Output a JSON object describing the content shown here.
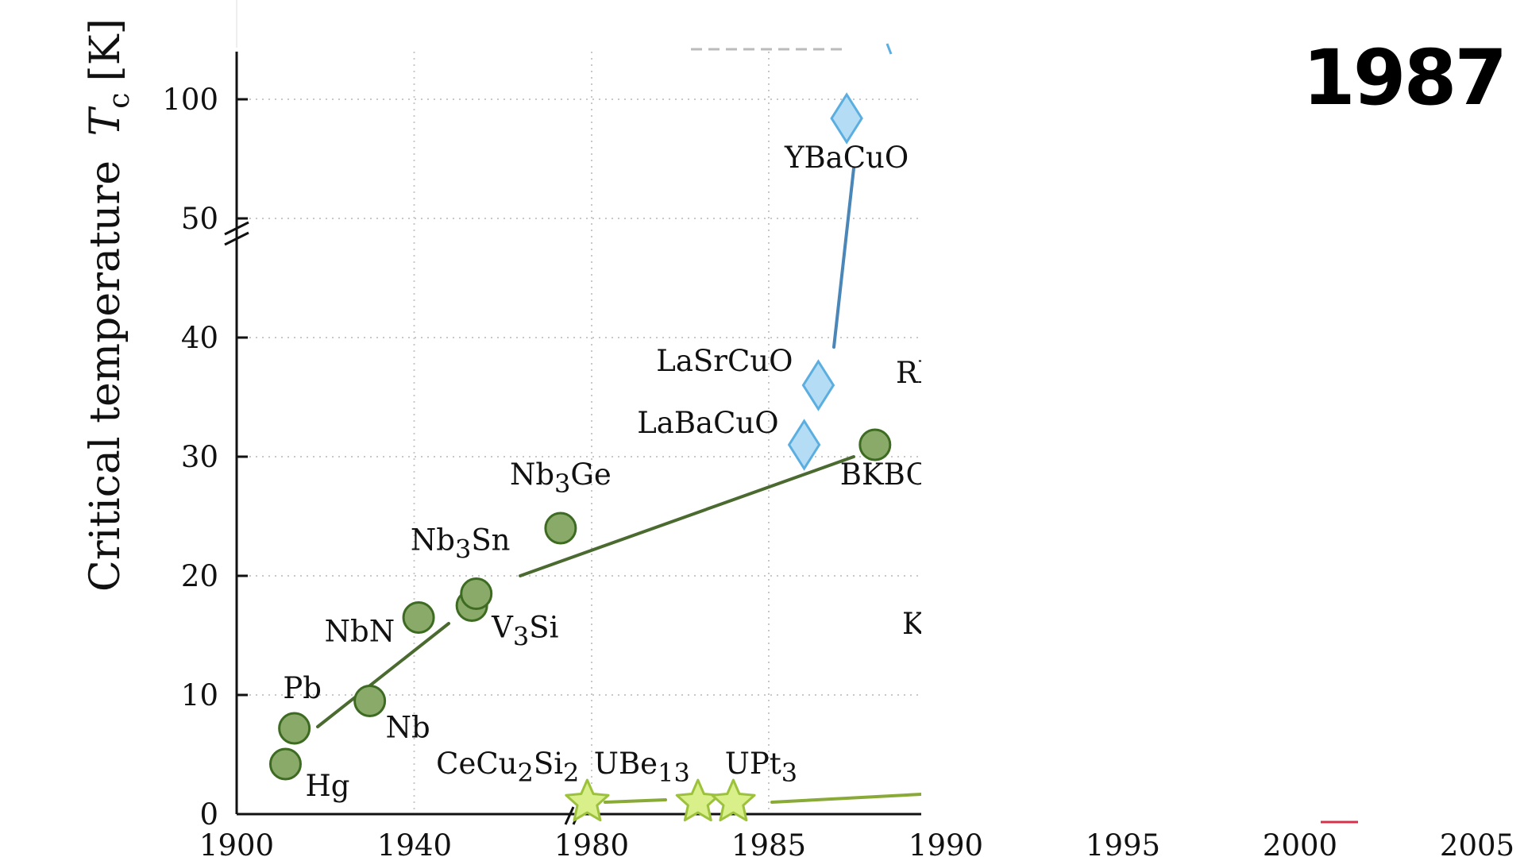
{
  "year_label": "1987",
  "chart_data": {
    "type": "scatter",
    "title": "",
    "ylabel": "Critical temperature",
    "ylabel_symbol": "T",
    "ylabel_subscript": "c",
    "ylabel_unit": "[K]",
    "x_ticks_left": [
      "1900",
      "1940",
      "1980"
    ],
    "x_ticks_right": [
      "1985",
      "1990",
      "1995",
      "2000",
      "2005"
    ],
    "y_ticks": [
      "0",
      "10",
      "20",
      "30",
      "40",
      "50",
      "100"
    ],
    "x_break": true,
    "y_break": true,
    "grid": true,
    "colors": {
      "conventional": "#8aaa6a",
      "conventional_stroke": "#3e6b22",
      "cuprate": "#b5dcf5",
      "cuprate_stroke": "#5aaee0",
      "heavy_fermion": "#d8ef8a",
      "heavy_fermion_stroke": "#9cc23c",
      "trend_conventional": "#4a6a30",
      "trend_cuprate": "#4a86b8",
      "trend_heavy": "#8aaa38"
    },
    "series": [
      {
        "marker": "circle",
        "points": [
          {
            "label": "Hg",
            "x": 1911,
            "y": 4.2
          },
          {
            "label": "Pb",
            "x": 1913,
            "y": 7.2
          },
          {
            "label": "Nb",
            "x": 1930,
            "y": 9.5
          },
          {
            "label": "NbN",
            "x": 1941,
            "y": 16.5
          },
          {
            "label": "V₃Si",
            "x": 1953,
            "y": 17.5
          },
          {
            "label": "Nb₃Sn",
            "x": 1954,
            "y": 18.5
          },
          {
            "label": "Nb₃Ge",
            "x": 1973,
            "y": 24
          },
          {
            "label": "BKBO",
            "x": 1988,
            "y": 31
          }
        ]
      },
      {
        "marker": "diamond",
        "points": [
          {
            "label": "LaBaCuO",
            "x": 1986,
            "y": 31
          },
          {
            "label": "LaSrCuO",
            "x": 1986.4,
            "y": 36
          },
          {
            "label": "YBaCuO",
            "x": 1987.2,
            "y": 92
          }
        ]
      },
      {
        "marker": "star",
        "points": [
          {
            "label": "CeCu₂Si₂",
            "x": 1979,
            "y": 1.0
          },
          {
            "label": "UBe₁₃",
            "x": 1983,
            "y": 1.0
          },
          {
            "label": "UPt₃",
            "x": 1984,
            "y": 1.0
          }
        ]
      }
    ],
    "other_labels": [
      "Rb",
      "K"
    ]
  }
}
